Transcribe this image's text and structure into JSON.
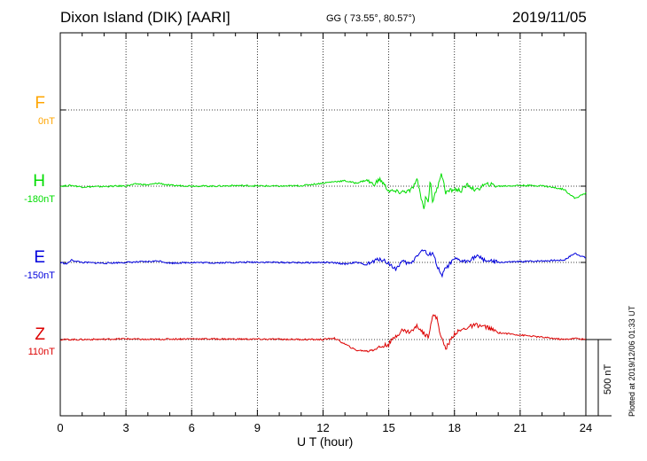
{
  "header": {
    "title": "Dixon Island (DIK)  [AARI]",
    "coords": "GG ( 73.55°,  80.57°)",
    "date": "2019/11/05"
  },
  "chart_data": {
    "type": "line",
    "xlabel": "U T (hour)",
    "xlim": [
      0,
      24
    ],
    "xticks": [
      "0",
      "3",
      "6",
      "9",
      "12",
      "15",
      "18",
      "21",
      "24"
    ],
    "scale_label": "500 nT",
    "plotted_note": "Plotted at 2019/12/06 01:33 UT",
    "series": [
      {
        "name": "F",
        "baseline": "0nT",
        "color": "#ffa500",
        "x": [],
        "y": []
      },
      {
        "name": "H",
        "baseline": "-180nT",
        "color": "#00dd00",
        "x": [
          0,
          0.5,
          1,
          2,
          3,
          3.5,
          4,
          4.5,
          5,
          6,
          7,
          8,
          9,
          10,
          11,
          12,
          12.5,
          13,
          13.5,
          14,
          14.3,
          14.6,
          15,
          15.5,
          16,
          16.3,
          16.6,
          16.7,
          16.8,
          16.9,
          17,
          17.2,
          17.4,
          17.6,
          18,
          18.3,
          18.6,
          19,
          19.3,
          19.6,
          20,
          21,
          22,
          23,
          23.5,
          24
        ],
        "y": [
          0,
          5,
          -5,
          -2,
          2,
          15,
          8,
          20,
          5,
          2,
          0,
          4,
          2,
          0,
          3,
          20,
          30,
          35,
          20,
          40,
          10,
          45,
          -30,
          -40,
          -30,
          40,
          -150,
          -60,
          -100,
          40,
          -100,
          -20,
          90,
          -40,
          -20,
          -30,
          10,
          -30,
          5,
          12,
          0,
          5,
          3,
          -20,
          -80,
          -45
        ]
      },
      {
        "name": "E",
        "baseline": "-150nT",
        "color": "#0000dd",
        "x": [
          0,
          0.3,
          0.5,
          1,
          2,
          3,
          4,
          4.5,
          5,
          6,
          7,
          8,
          9,
          10,
          11,
          12,
          12.5,
          13,
          13.5,
          14,
          14.3,
          14.6,
          15,
          15.3,
          15.6,
          16,
          16.3,
          16.6,
          16.8,
          17,
          17.2,
          17.4,
          17.6,
          18,
          18.5,
          19,
          19.5,
          20,
          21,
          22,
          23,
          23.5,
          24
        ],
        "y": [
          0,
          -10,
          15,
          0,
          -5,
          0,
          5,
          10,
          -5,
          0,
          -3,
          0,
          2,
          0,
          -2,
          0,
          -3,
          -10,
          0,
          -15,
          5,
          25,
          -5,
          -45,
          5,
          -10,
          50,
          85,
          40,
          70,
          -20,
          -90,
          -40,
          20,
          5,
          40,
          10,
          0,
          5,
          10,
          15,
          60,
          30
        ]
      },
      {
        "name": "Z",
        "baseline": "110nT",
        "color": "#dd0000",
        "x": [
          0,
          1,
          2,
          3,
          4,
          5,
          6,
          8,
          10,
          12,
          12.5,
          13,
          13.5,
          14,
          14.5,
          15,
          15.3,
          15.6,
          16,
          16.3,
          16.6,
          16.8,
          17,
          17.2,
          17.4,
          17.6,
          18,
          18.3,
          18.6,
          19,
          19.5,
          20,
          21,
          22,
          23,
          23.5,
          24
        ],
        "y": [
          0,
          0,
          2,
          5,
          0,
          3,
          5,
          3,
          2,
          0,
          10,
          -30,
          -70,
          -75,
          -55,
          -30,
          20,
          60,
          50,
          90,
          40,
          20,
          160,
          140,
          10,
          -60,
          40,
          60,
          80,
          95,
          80,
          45,
          30,
          15,
          0,
          8,
          0
        ]
      }
    ]
  }
}
